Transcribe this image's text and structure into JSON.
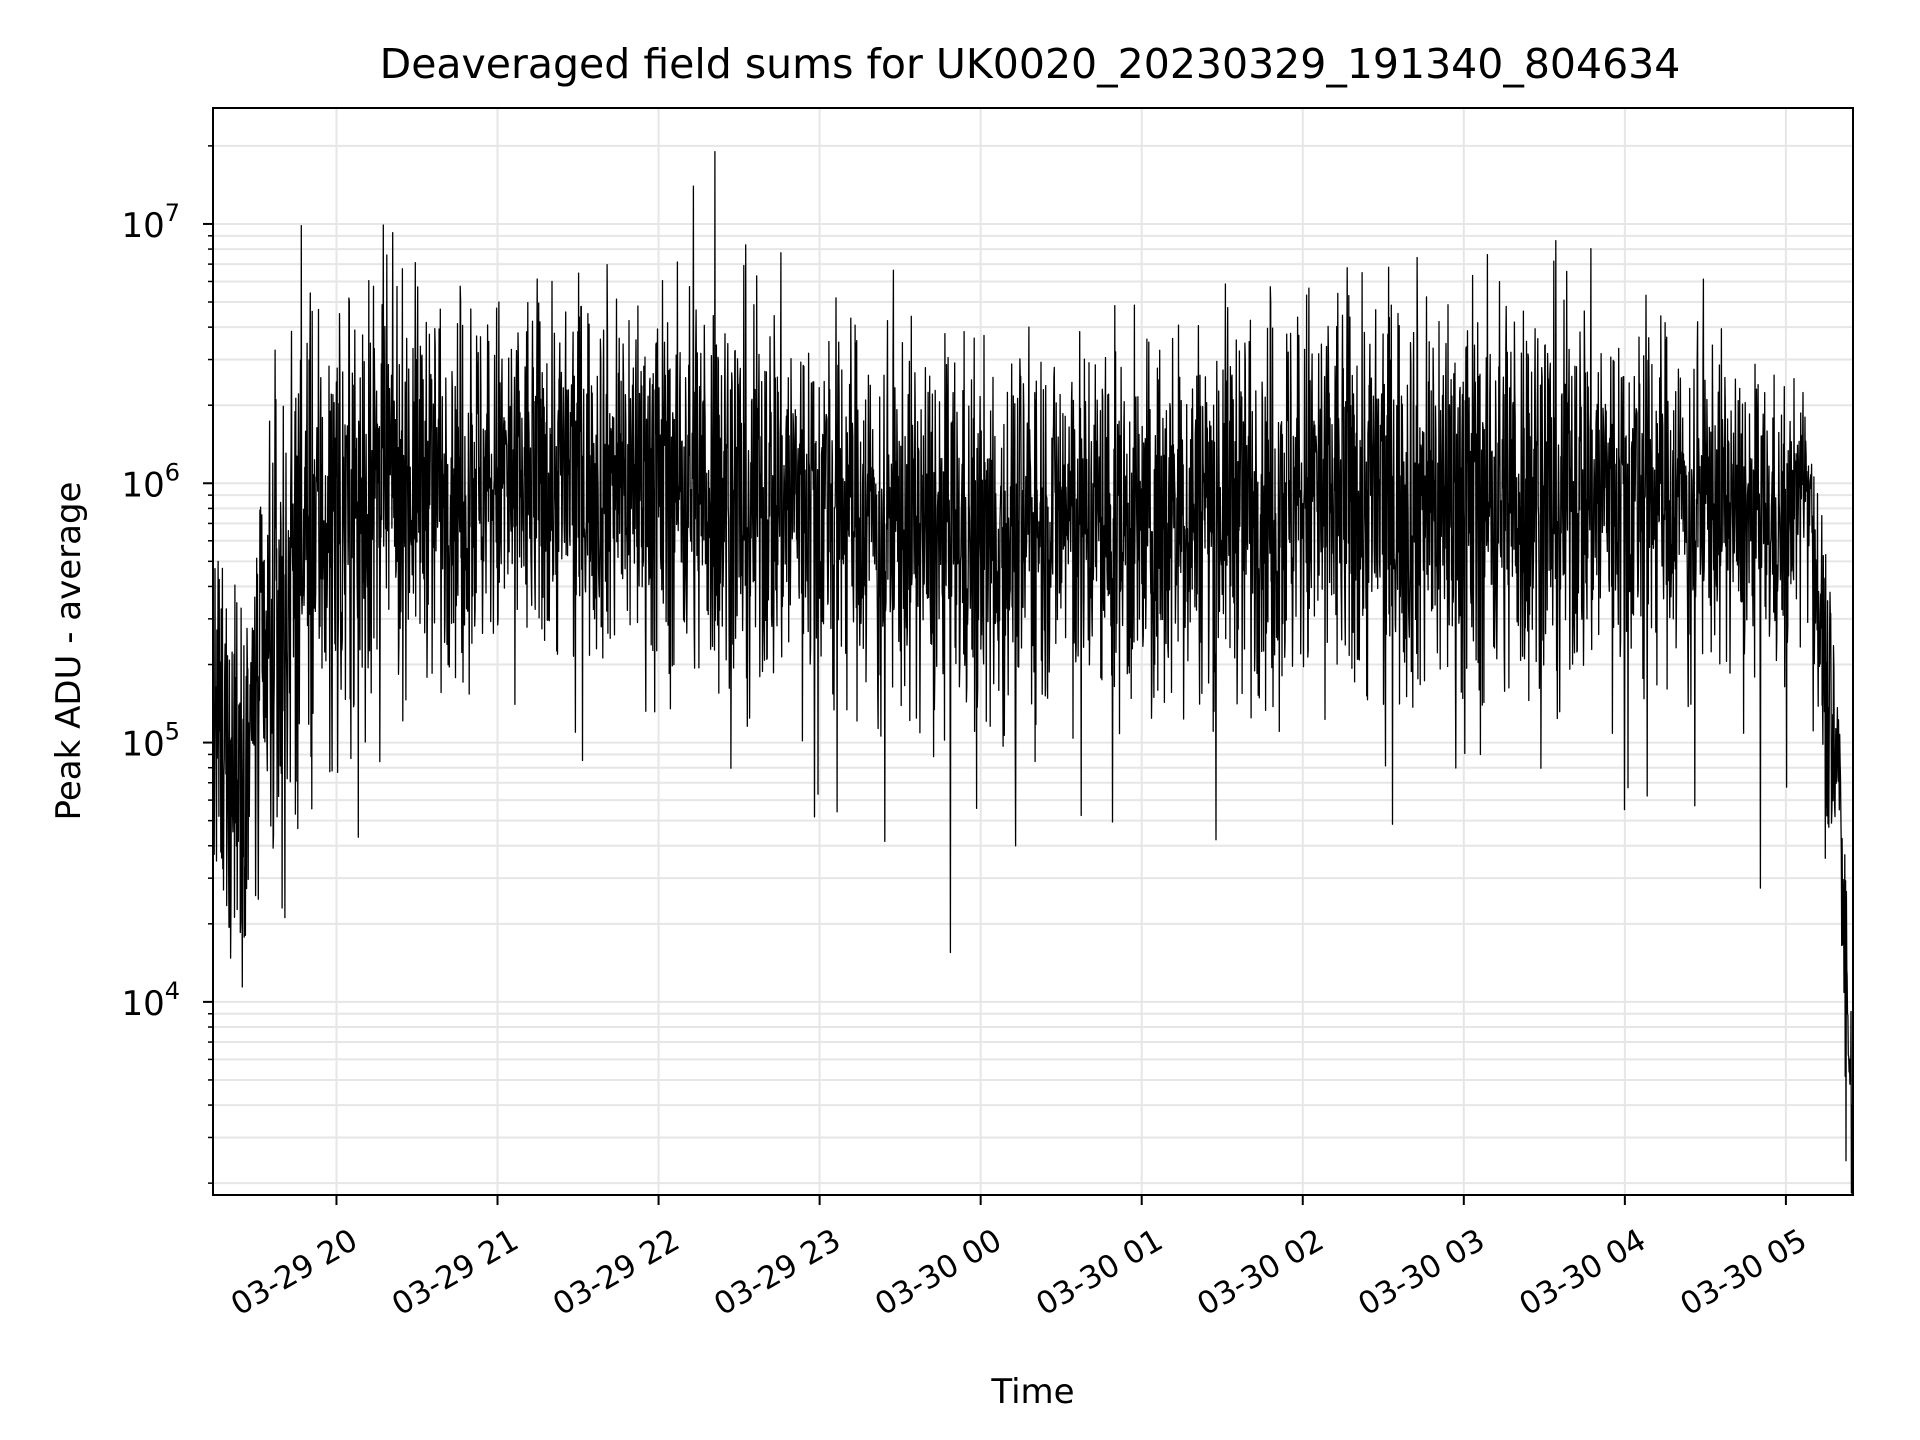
{
  "chart_data": {
    "type": "line",
    "title": "Deaveraged field sums for UK0020_20230329_191340_804634",
    "xlabel": "Time",
    "ylabel": "Peak ADU - average",
    "yscale": "log",
    "ylim": [
      1800,
      28000000
    ],
    "xlim": [
      "2023-03-29 19:14",
      "2023-03-30 05:25"
    ],
    "grid": true,
    "x_ticks": [
      {
        "label": "03-29 20",
        "time": "2023-03-29 20:00"
      },
      {
        "label": "03-29 21",
        "time": "2023-03-29 21:00"
      },
      {
        "label": "03-29 22",
        "time": "2023-03-29 22:00"
      },
      {
        "label": "03-29 23",
        "time": "2023-03-29 23:00"
      },
      {
        "label": "03-30 00",
        "time": "2023-03-30 00:00"
      },
      {
        "label": "03-30 01",
        "time": "2023-03-30 01:00"
      },
      {
        "label": "03-30 02",
        "time": "2023-03-30 02:00"
      },
      {
        "label": "03-30 03",
        "time": "2023-03-30 03:00"
      },
      {
        "label": "03-30 04",
        "time": "2023-03-30 04:00"
      },
      {
        "label": "03-30 05",
        "time": "2023-03-30 05:00"
      }
    ],
    "y_ticks": [
      {
        "base": "10",
        "exp": "4",
        "value": 10000
      },
      {
        "base": "10",
        "exp": "5",
        "value": 100000
      },
      {
        "base": "10",
        "exp": "6",
        "value": 1000000
      },
      {
        "base": "10",
        "exp": "7",
        "value": 10000000
      }
    ],
    "series": [
      {
        "color": "#000000",
        "envelope": [
          {
            "t": "2023-03-29 19:14",
            "median": 100000,
            "spread": 0.35
          },
          {
            "t": "2023-03-29 19:25",
            "median": 90000,
            "spread": 0.4
          },
          {
            "t": "2023-03-29 19:35",
            "median": 180000,
            "spread": 0.45
          },
          {
            "t": "2023-03-29 19:45",
            "median": 600000,
            "spread": 0.45
          },
          {
            "t": "2023-03-29 20:00",
            "median": 800000,
            "spread": 0.4
          },
          {
            "t": "2023-03-29 20:30",
            "median": 1100000,
            "spread": 0.35
          },
          {
            "t": "2023-03-29 21:00",
            "median": 1000000,
            "spread": 0.35
          },
          {
            "t": "2023-03-29 21:30",
            "median": 1100000,
            "spread": 0.35
          },
          {
            "t": "2023-03-29 22:00",
            "median": 1100000,
            "spread": 0.35
          },
          {
            "t": "2023-03-29 22:30",
            "median": 900000,
            "spread": 0.4
          },
          {
            "t": "2023-03-29 23:00",
            "median": 900000,
            "spread": 0.35
          },
          {
            "t": "2023-03-29 23:30",
            "median": 700000,
            "spread": 0.35
          },
          {
            "t": "2023-03-30 00:00",
            "median": 600000,
            "spread": 0.35
          },
          {
            "t": "2023-03-30 00:30",
            "median": 800000,
            "spread": 0.35
          },
          {
            "t": "2023-03-30 01:00",
            "median": 650000,
            "spread": 0.35
          },
          {
            "t": "2023-03-30 01:30",
            "median": 900000,
            "spread": 0.35
          },
          {
            "t": "2023-03-30 02:00",
            "median": 900000,
            "spread": 0.4
          },
          {
            "t": "2023-03-30 02:30",
            "median": 900000,
            "spread": 0.4
          },
          {
            "t": "2023-03-30 03:00",
            "median": 900000,
            "spread": 0.4
          },
          {
            "t": "2023-03-30 03:30",
            "median": 950000,
            "spread": 0.4
          },
          {
            "t": "2023-03-30 04:00",
            "median": 950000,
            "spread": 0.35
          },
          {
            "t": "2023-03-30 04:30",
            "median": 900000,
            "spread": 0.3
          },
          {
            "t": "2023-03-30 05:00",
            "median": 650000,
            "spread": 0.25
          },
          {
            "t": "2023-03-30 05:08",
            "median": 1300000,
            "spread": 0.15
          },
          {
            "t": "2023-03-30 05:15",
            "median": 150000,
            "spread": 0.3
          },
          {
            "t": "2023-03-30 05:20",
            "median": 70000,
            "spread": 0.2
          },
          {
            "t": "2023-03-30 05:25",
            "median": 2600,
            "spread": 0.2
          }
        ],
        "spikes": [
          {
            "t": "2023-03-29 22:13",
            "value": 14000000
          },
          {
            "t": "2023-03-29 22:21",
            "value": 19000000
          },
          {
            "t": "2023-03-29 19:51",
            "value": 4600000
          },
          {
            "t": "2023-03-29 20:50",
            "value": 4700000
          },
          {
            "t": "2023-03-29 21:31",
            "value": 4800000
          },
          {
            "t": "2023-03-30 00:18",
            "value": 4000000
          },
          {
            "t": "2023-03-30 00:13",
            "value": 40000
          },
          {
            "t": "2023-03-29 19:18",
            "value": 27000
          },
          {
            "t": "2023-03-30 04:07",
            "value": 3100000
          },
          {
            "t": "2023-03-30 04:27",
            "value": 3000000
          }
        ]
      }
    ]
  }
}
